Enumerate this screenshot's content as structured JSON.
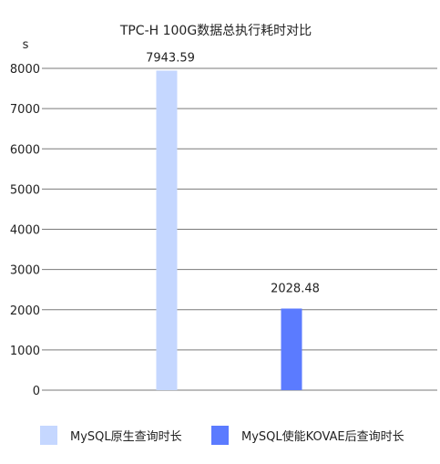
{
  "chart_data": {
    "type": "bar",
    "title": "TPC-H 100G数据总执行耗时对比",
    "ylabel": "s",
    "xlabel": "",
    "ylim": [
      0,
      8000
    ],
    "yticks": [
      0,
      1000,
      2000,
      3000,
      4000,
      5000,
      6000,
      7000,
      8000
    ],
    "grid": true,
    "legend_position": "bottom",
    "series": [
      {
        "name": "MySQL原生查询时长",
        "value": 7943.59,
        "label": "7943.59",
        "color": "#c5d7ff"
      },
      {
        "name": "MySQL使能KOVAE后查询时长",
        "value": 2028.48,
        "label": "2028.48",
        "color": "#5b7bff"
      }
    ]
  }
}
